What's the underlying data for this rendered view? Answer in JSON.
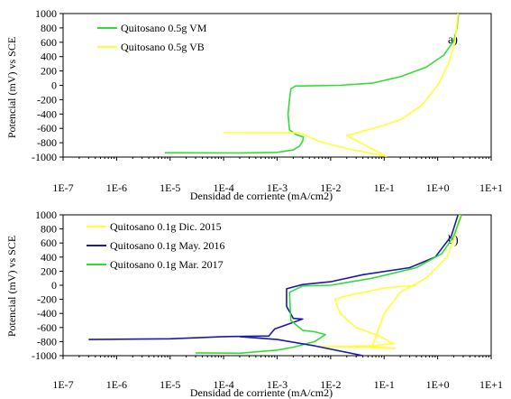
{
  "chart_data": [
    {
      "type": "line",
      "panel_label": "a)",
      "ylabel": "Potencial (mV) vs SCE",
      "xlabel": "Densidad de corriente (mA/cm2)",
      "xscale": "log",
      "xlim": [
        1e-07,
        10
      ],
      "ylim": [
        -1000,
        1000
      ],
      "x_tick_labels": [
        "1E-7",
        "1E-6",
        "1E-5",
        "1E-4",
        "1E-3",
        "1E-2",
        "1E-1",
        "1E+0",
        "1E+1"
      ],
      "y_tick_labels": [
        "-1000",
        "-800",
        "-600",
        "-400",
        "-200",
        "0",
        "200",
        "400",
        "600",
        "800",
        "1000"
      ],
      "legend_position": "top-left",
      "grid": false,
      "series": [
        {
          "name": "Quitosano 0.5g VM",
          "color": "#33dd33",
          "points": [
            [
              8e-06,
              -940
            ],
            [
              0.0002,
              -942
            ],
            [
              0.001,
              -935
            ],
            [
              0.002,
              -900
            ],
            [
              0.0026,
              -850
            ],
            [
              0.003,
              -780
            ],
            [
              0.0031,
              -720
            ],
            [
              0.0023,
              -690
            ],
            [
              0.0017,
              -620
            ],
            [
              0.0016,
              -400
            ],
            [
              0.0017,
              -200
            ],
            [
              0.0018,
              -50
            ],
            [
              0.0022,
              -10
            ],
            [
              0.005,
              -5
            ],
            [
              0.015,
              0
            ],
            [
              0.06,
              30
            ],
            [
              0.2,
              120
            ],
            [
              0.6,
              250
            ],
            [
              1.3,
              420
            ],
            [
              2,
              620
            ],
            [
              2.3,
              800
            ],
            [
              2.45,
              1000
            ]
          ]
        },
        {
          "name": "Quitosano 0.5g VB",
          "color": "#ffff33",
          "points": [
            [
              0.0001,
              -660
            ],
            [
              0.001,
              -662
            ],
            [
              0.0026,
              -660
            ],
            [
              0.0035,
              -700
            ],
            [
              0.006,
              -780
            ],
            [
              0.02,
              -880
            ],
            [
              0.11,
              -990
            ],
            [
              0.02,
              -700
            ],
            [
              0.07,
              -590
            ],
            [
              0.2,
              -480
            ],
            [
              0.5,
              -280
            ],
            [
              1,
              0
            ],
            [
              1.6,
              300
            ],
            [
              2.1,
              600
            ],
            [
              2.4,
              1000
            ]
          ]
        }
      ]
    },
    {
      "type": "line",
      "panel_label": "b)",
      "ylabel": "Potencial (mV) vs SCE",
      "xlabel": "Densidad de corriente (mA/cm2)",
      "xscale": "log",
      "xlim": [
        1e-07,
        10
      ],
      "ylim": [
        -1000,
        1000
      ],
      "x_tick_labels": [
        "1E-7",
        "1E-6",
        "1E-5",
        "1E-4",
        "1E-3",
        "1E-2",
        "1E-1",
        "1E+0",
        "1E+1"
      ],
      "y_tick_labels": [
        "-1000",
        "-800",
        "-600",
        "-400",
        "-200",
        "0",
        "200",
        "400",
        "600",
        "800",
        "1000"
      ],
      "legend_position": "top-left",
      "grid": false,
      "series": [
        {
          "name": "Quitosano 0.1g Dic. 2015",
          "color": "#ffff33",
          "points": [
            [
              0.4,
              0
            ],
            [
              0.1,
              -40
            ],
            [
              0.02,
              -150
            ],
            [
              0.012,
              -200
            ],
            [
              0.015,
              -400
            ],
            [
              0.03,
              -600
            ],
            [
              0.08,
              -720
            ],
            [
              0.15,
              -830
            ],
            [
              0.06,
              -860
            ],
            [
              0.015,
              -870
            ],
            [
              0.006,
              -870
            ],
            [
              0.05,
              -880
            ],
            [
              0.16,
              -900
            ],
            [
              0.06,
              -870
            ],
            [
              0.1,
              -400
            ],
            [
              0.2,
              -100
            ],
            [
              0.6,
              100
            ],
            [
              1.5,
              400
            ],
            [
              2.1,
              700
            ],
            [
              2.6,
              1000
            ]
          ]
        },
        {
          "name": "Quitosano 0.1g May. 2016",
          "color": "#1a1aaa",
          "points": [
            [
              3e-07,
              -770
            ],
            [
              1e-05,
              -760
            ],
            [
              0.0001,
              -730
            ],
            [
              0.0007,
              -720
            ],
            [
              0.0009,
              -620
            ],
            [
              0.0015,
              -560
            ],
            [
              0.003,
              -480
            ],
            [
              0.002,
              -470
            ],
            [
              0.0015,
              -300
            ],
            [
              0.0015,
              -50
            ],
            [
              0.003,
              10
            ],
            [
              0.01,
              50
            ],
            [
              0.04,
              150
            ],
            [
              0.3,
              250
            ],
            [
              0.9,
              400
            ],
            [
              1.8,
              700
            ],
            [
              2.4,
              1000
            ]
          ]
        },
        {
          "name": "Quitosano 0.1g Mar. 2017",
          "color": "#33dd33",
          "points": [
            [
              3e-05,
              -960
            ],
            [
              0.0002,
              -965
            ],
            [
              0.001,
              -920
            ],
            [
              0.002,
              -880
            ],
            [
              0.005,
              -800
            ],
            [
              0.008,
              -700
            ],
            [
              0.005,
              -660
            ],
            [
              0.003,
              -640
            ],
            [
              0.0018,
              -500
            ],
            [
              0.0017,
              -100
            ],
            [
              0.003,
              -10
            ],
            [
              0.01,
              0
            ],
            [
              0.06,
              100
            ],
            [
              0.4,
              250
            ],
            [
              1.2,
              450
            ],
            [
              2,
              700
            ],
            [
              2.8,
              1000
            ]
          ]
        },
        {
          "name": "",
          "color": "#1a1aaa",
          "points": [
            [
              0.0002,
              -730
            ],
            [
              0.001,
              -770
            ],
            [
              0.005,
              -860
            ],
            [
              0.04,
              -1000
            ]
          ]
        }
      ]
    }
  ]
}
